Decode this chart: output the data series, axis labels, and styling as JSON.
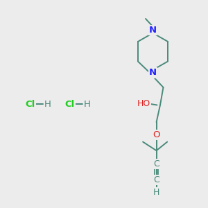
{
  "bg_color": "#ececec",
  "bond_color": "#4a8a7a",
  "bond_width": 1.4,
  "N_color": "#2222ff",
  "O_color": "#dd2222",
  "Cl_color": "#22cc22",
  "H_color": "#4a8a7a",
  "C_color": "#4a8a7a",
  "font_size": 9,
  "fig_size": [
    3.0,
    3.0
  ],
  "dpi": 100,
  "xlim": [
    0,
    10
  ],
  "ylim": [
    0,
    10
  ]
}
